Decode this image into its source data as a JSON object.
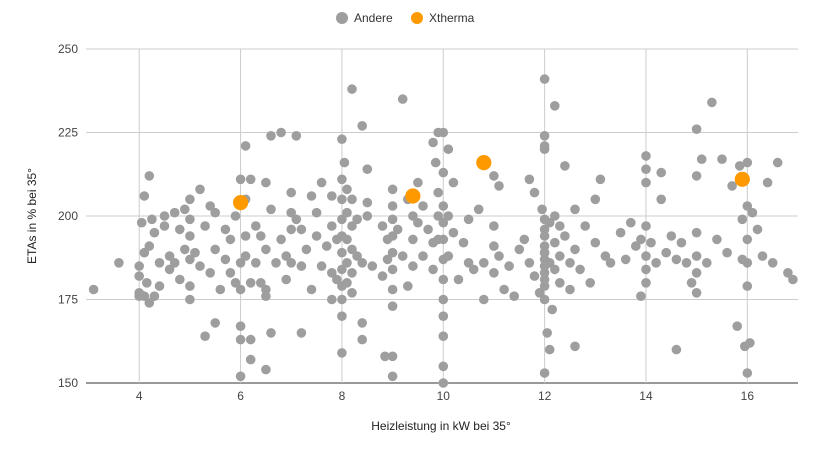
{
  "chart_data": {
    "type": "scatter",
    "xlabel": "Heizleistung in kW bei 35°",
    "ylabel": "ETAs in % bei 35°",
    "xlim": [
      2.95,
      17.0
    ],
    "ylim": [
      150,
      250
    ],
    "x_ticks": [
      4,
      6,
      8,
      10,
      12,
      14,
      16
    ],
    "y_ticks": [
      150,
      175,
      200,
      225,
      250
    ],
    "grid": "vertical-and-horizontal",
    "legend_position": "top-center",
    "series": [
      {
        "name": "Andere",
        "color": "#9e9e9e",
        "points": [
          [
            3.1,
            178
          ],
          [
            3.6,
            186
          ],
          [
            4.0,
            185
          ],
          [
            4.0,
            182
          ],
          [
            4.0,
            177
          ],
          [
            4.0,
            176
          ],
          [
            4.05,
            198
          ],
          [
            4.1,
            206
          ],
          [
            4.1,
            189
          ],
          [
            4.1,
            176
          ],
          [
            4.15,
            180
          ],
          [
            4.2,
            212
          ],
          [
            4.2,
            191
          ],
          [
            4.2,
            174
          ],
          [
            4.25,
            199
          ],
          [
            4.3,
            195
          ],
          [
            4.3,
            176
          ],
          [
            4.4,
            186
          ],
          [
            4.4,
            179
          ],
          [
            4.5,
            200
          ],
          [
            4.5,
            197
          ],
          [
            4.6,
            188
          ],
          [
            4.6,
            184
          ],
          [
            4.7,
            201
          ],
          [
            4.7,
            186
          ],
          [
            4.8,
            196
          ],
          [
            4.8,
            181
          ],
          [
            4.9,
            202
          ],
          [
            4.9,
            190
          ],
          [
            5.0,
            205
          ],
          [
            5.0,
            199
          ],
          [
            5.0,
            194
          ],
          [
            5.0,
            187
          ],
          [
            5.0,
            179
          ],
          [
            5.0,
            175
          ],
          [
            5.1,
            189
          ],
          [
            5.2,
            208
          ],
          [
            5.2,
            185
          ],
          [
            5.3,
            197
          ],
          [
            5.3,
            164
          ],
          [
            5.4,
            203
          ],
          [
            5.4,
            183
          ],
          [
            5.5,
            201
          ],
          [
            5.5,
            168
          ],
          [
            5.5,
            190
          ],
          [
            5.6,
            178
          ],
          [
            5.7,
            196
          ],
          [
            5.7,
            187
          ],
          [
            5.8,
            193
          ],
          [
            5.8,
            183
          ],
          [
            5.9,
            200
          ],
          [
            5.9,
            180
          ],
          [
            6.0,
            211
          ],
          [
            6.0,
            167
          ],
          [
            6.0,
            186
          ],
          [
            6.0,
            178
          ],
          [
            6.0,
            163
          ],
          [
            6.0,
            152
          ],
          [
            6.1,
            194
          ],
          [
            6.1,
            205
          ],
          [
            6.1,
            221
          ],
          [
            6.1,
            188
          ],
          [
            6.2,
            211
          ],
          [
            6.2,
            180
          ],
          [
            6.2,
            163
          ],
          [
            6.2,
            157
          ],
          [
            6.3,
            197
          ],
          [
            6.3,
            186
          ],
          [
            6.4,
            194
          ],
          [
            6.4,
            180
          ],
          [
            6.5,
            210
          ],
          [
            6.5,
            190
          ],
          [
            6.5,
            178
          ],
          [
            6.5,
            176
          ],
          [
            6.5,
            154
          ],
          [
            6.6,
            224
          ],
          [
            6.6,
            202
          ],
          [
            6.6,
            165
          ],
          [
            6.7,
            186
          ],
          [
            6.8,
            225
          ],
          [
            6.8,
            193
          ],
          [
            6.9,
            188
          ],
          [
            6.9,
            181
          ],
          [
            7.0,
            207
          ],
          [
            7.0,
            201
          ],
          [
            7.0,
            196
          ],
          [
            7.0,
            186
          ],
          [
            7.1,
            224
          ],
          [
            7.1,
            199
          ],
          [
            7.2,
            196
          ],
          [
            7.2,
            185
          ],
          [
            7.2,
            165
          ],
          [
            7.3,
            190
          ],
          [
            7.4,
            206
          ],
          [
            7.4,
            178
          ],
          [
            7.5,
            201
          ],
          [
            7.5,
            194
          ],
          [
            7.6,
            210
          ],
          [
            7.6,
            185
          ],
          [
            7.7,
            191
          ],
          [
            7.8,
            206
          ],
          [
            7.8,
            197
          ],
          [
            7.8,
            183
          ],
          [
            7.8,
            175
          ],
          [
            7.9,
            193
          ],
          [
            7.9,
            181
          ],
          [
            8.0,
            223
          ],
          [
            8.0,
            211
          ],
          [
            8.0,
            205
          ],
          [
            8.0,
            199
          ],
          [
            8.0,
            194
          ],
          [
            8.0,
            189
          ],
          [
            8.0,
            184
          ],
          [
            8.0,
            179
          ],
          [
            8.0,
            175
          ],
          [
            8.0,
            170
          ],
          [
            8.0,
            159
          ],
          [
            8.05,
            216
          ],
          [
            8.1,
            208
          ],
          [
            8.1,
            201
          ],
          [
            8.1,
            193
          ],
          [
            8.1,
            186
          ],
          [
            8.1,
            180
          ],
          [
            8.2,
            238
          ],
          [
            8.2,
            205
          ],
          [
            8.2,
            197
          ],
          [
            8.2,
            190
          ],
          [
            8.2,
            183
          ],
          [
            8.2,
            177
          ],
          [
            8.3,
            199
          ],
          [
            8.3,
            188
          ],
          [
            8.4,
            227
          ],
          [
            8.4,
            186
          ],
          [
            8.4,
            168
          ],
          [
            8.4,
            163
          ],
          [
            8.5,
            214
          ],
          [
            8.5,
            204
          ],
          [
            8.5,
            200
          ],
          [
            8.6,
            185
          ],
          [
            8.8,
            197
          ],
          [
            8.8,
            182
          ],
          [
            8.85,
            158
          ],
          [
            8.9,
            193
          ],
          [
            8.9,
            187
          ],
          [
            9.0,
            208
          ],
          [
            9.0,
            203
          ],
          [
            9.0,
            199
          ],
          [
            9.0,
            194
          ],
          [
            9.0,
            189
          ],
          [
            9.0,
            184
          ],
          [
            9.0,
            178
          ],
          [
            9.0,
            173
          ],
          [
            9.0,
            158
          ],
          [
            9.0,
            152
          ],
          [
            9.1,
            196
          ],
          [
            9.2,
            235
          ],
          [
            9.2,
            188
          ],
          [
            9.3,
            205
          ],
          [
            9.3,
            179
          ],
          [
            9.4,
            200
          ],
          [
            9.4,
            193
          ],
          [
            9.4,
            185
          ],
          [
            9.5,
            210
          ],
          [
            9.5,
            198
          ],
          [
            9.6,
            203
          ],
          [
            9.6,
            188
          ],
          [
            9.7,
            196
          ],
          [
            9.8,
            222
          ],
          [
            9.8,
            192
          ],
          [
            9.8,
            184
          ],
          [
            9.85,
            216
          ],
          [
            9.9,
            225
          ],
          [
            9.9,
            207
          ],
          [
            9.9,
            200
          ],
          [
            9.9,
            193
          ],
          [
            10.0,
            225
          ],
          [
            10.0,
            213
          ],
          [
            10.0,
            203
          ],
          [
            10.0,
            198
          ],
          [
            10.0,
            193
          ],
          [
            10.0,
            187
          ],
          [
            10.0,
            181
          ],
          [
            10.0,
            175
          ],
          [
            10.0,
            170
          ],
          [
            10.0,
            164
          ],
          [
            10.0,
            155
          ],
          [
            10.0,
            150
          ],
          [
            10.1,
            220
          ],
          [
            10.1,
            200
          ],
          [
            10.1,
            188
          ],
          [
            10.2,
            210
          ],
          [
            10.2,
            195
          ],
          [
            10.3,
            181
          ],
          [
            10.4,
            192
          ],
          [
            10.5,
            199
          ],
          [
            10.5,
            186
          ],
          [
            10.6,
            184
          ],
          [
            10.7,
            202
          ],
          [
            10.8,
            186
          ],
          [
            10.8,
            175
          ],
          [
            11.0,
            212
          ],
          [
            11.0,
            197
          ],
          [
            11.0,
            191
          ],
          [
            11.0,
            183
          ],
          [
            11.1,
            209
          ],
          [
            11.1,
            188
          ],
          [
            11.2,
            178
          ],
          [
            11.3,
            185
          ],
          [
            11.4,
            176
          ],
          [
            11.5,
            190
          ],
          [
            11.6,
            193
          ],
          [
            11.7,
            211
          ],
          [
            11.7,
            186
          ],
          [
            11.8,
            207
          ],
          [
            11.8,
            182
          ],
          [
            11.9,
            177
          ],
          [
            11.95,
            202
          ],
          [
            12.0,
            241
          ],
          [
            12.0,
            224
          ],
          [
            12.0,
            221
          ],
          [
            12.0,
            220
          ],
          [
            12.0,
            199
          ],
          [
            12.0,
            196
          ],
          [
            12.0,
            194
          ],
          [
            12.0,
            191
          ],
          [
            12.0,
            189
          ],
          [
            12.0,
            187
          ],
          [
            12.0,
            185
          ],
          [
            12.0,
            183
          ],
          [
            12.0,
            181
          ],
          [
            12.0,
            179
          ],
          [
            12.0,
            175
          ],
          [
            12.0,
            153
          ],
          [
            12.05,
            165
          ],
          [
            12.1,
            198
          ],
          [
            12.1,
            186
          ],
          [
            12.1,
            160
          ],
          [
            12.15,
            172
          ],
          [
            12.2,
            233
          ],
          [
            12.2,
            200
          ],
          [
            12.2,
            192
          ],
          [
            12.2,
            184
          ],
          [
            12.3,
            197
          ],
          [
            12.3,
            188
          ],
          [
            12.3,
            180
          ],
          [
            12.4,
            215
          ],
          [
            12.4,
            194
          ],
          [
            12.5,
            186
          ],
          [
            12.5,
            178
          ],
          [
            12.6,
            202
          ],
          [
            12.6,
            190
          ],
          [
            12.6,
            161
          ],
          [
            12.7,
            184
          ],
          [
            12.8,
            197
          ],
          [
            12.9,
            180
          ],
          [
            13.0,
            205
          ],
          [
            13.0,
            192
          ],
          [
            13.1,
            211
          ],
          [
            13.2,
            188
          ],
          [
            13.3,
            186
          ],
          [
            13.5,
            195
          ],
          [
            13.6,
            187
          ],
          [
            13.7,
            198
          ],
          [
            13.8,
            191
          ],
          [
            13.9,
            176
          ],
          [
            13.9,
            193
          ],
          [
            14.0,
            218
          ],
          [
            14.0,
            214
          ],
          [
            14.0,
            210
          ],
          [
            14.0,
            197
          ],
          [
            14.0,
            188
          ],
          [
            14.0,
            184
          ],
          [
            14.0,
            180
          ],
          [
            14.1,
            192
          ],
          [
            14.2,
            186
          ],
          [
            14.3,
            213
          ],
          [
            14.3,
            205
          ],
          [
            14.4,
            189
          ],
          [
            14.5,
            194
          ],
          [
            14.6,
            187
          ],
          [
            14.6,
            160
          ],
          [
            14.7,
            192
          ],
          [
            14.8,
            186
          ],
          [
            14.9,
            180
          ],
          [
            15.0,
            226
          ],
          [
            15.0,
            212
          ],
          [
            15.0,
            195
          ],
          [
            15.0,
            188
          ],
          [
            15.0,
            183
          ],
          [
            15.0,
            177
          ],
          [
            15.1,
            217
          ],
          [
            15.2,
            186
          ],
          [
            15.3,
            234
          ],
          [
            15.4,
            193
          ],
          [
            15.5,
            217
          ],
          [
            15.6,
            189
          ],
          [
            15.7,
            209
          ],
          [
            15.8,
            167
          ],
          [
            15.85,
            215
          ],
          [
            15.9,
            199
          ],
          [
            15.9,
            187
          ],
          [
            15.95,
            161
          ],
          [
            16.0,
            216
          ],
          [
            16.0,
            203
          ],
          [
            16.0,
            193
          ],
          [
            16.0,
            186
          ],
          [
            16.0,
            179
          ],
          [
            16.0,
            153
          ],
          [
            16.05,
            162
          ],
          [
            16.1,
            201
          ],
          [
            16.2,
            196
          ],
          [
            16.3,
            188
          ],
          [
            16.4,
            210
          ],
          [
            16.5,
            186
          ],
          [
            16.6,
            216
          ],
          [
            16.8,
            183
          ],
          [
            16.9,
            181
          ]
        ]
      },
      {
        "name": "Xtherma",
        "color": "#ff9900",
        "points": [
          [
            6.0,
            204
          ],
          [
            9.4,
            206
          ],
          [
            10.8,
            216
          ],
          [
            15.9,
            211
          ]
        ]
      }
    ]
  }
}
